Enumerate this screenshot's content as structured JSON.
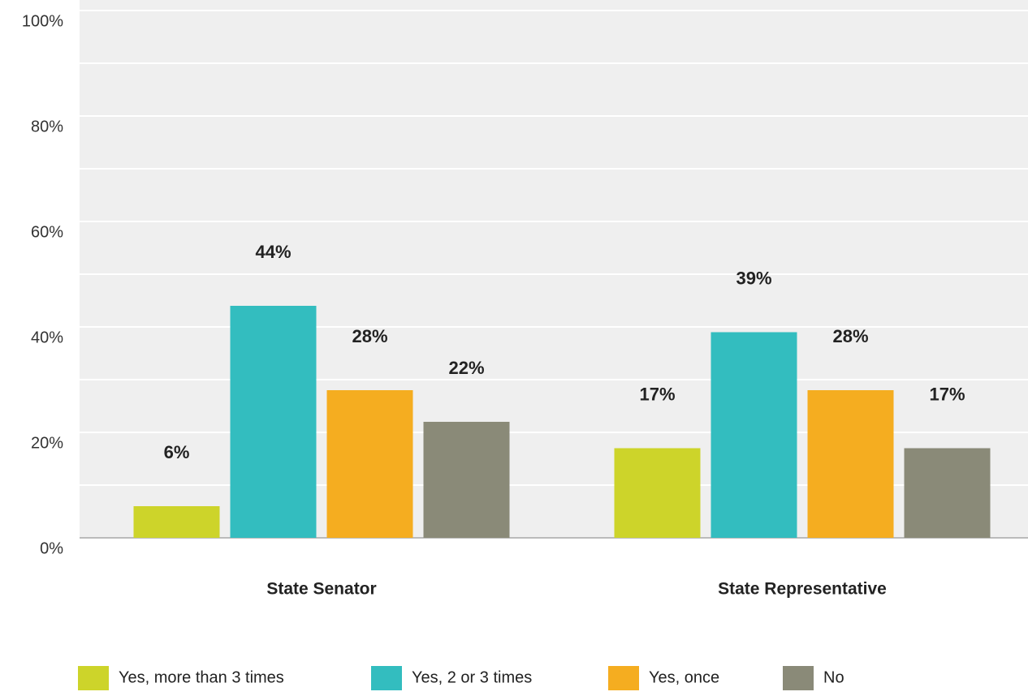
{
  "chart_data": {
    "type": "bar",
    "categories": [
      "State Senator",
      "State Representative"
    ],
    "series": [
      {
        "name": "Yes, more than 3 times",
        "color": "#cdd42a",
        "values": [
          6,
          17
        ],
        "value_labels": [
          "6%",
          "17%"
        ]
      },
      {
        "name": "Yes, 2 or 3 times",
        "color": "#33bdbf",
        "values": [
          44,
          39
        ],
        "value_labels": [
          "44%",
          "39%"
        ]
      },
      {
        "name": "Yes, once",
        "color": "#f5ad20",
        "values": [
          28,
          28
        ],
        "value_labels": [
          "28%",
          "28%"
        ]
      },
      {
        "name": "No",
        "color": "#8a8a78",
        "values": [
          22,
          17
        ],
        "value_labels": [
          "22%",
          "17%"
        ]
      }
    ],
    "ylim": [
      0,
      100
    ],
    "yticks": [
      {
        "value": 0,
        "label": "0%"
      },
      {
        "value": 20,
        "label": "20%"
      },
      {
        "value": 40,
        "label": "40%"
      },
      {
        "value": 60,
        "label": "60%"
      },
      {
        "value": 80,
        "label": "80%"
      },
      {
        "value": 100,
        "label": "100%"
      }
    ],
    "minor_yticks": [
      10,
      30,
      50,
      70,
      90
    ],
    "grid": true,
    "legend": "bottom"
  }
}
